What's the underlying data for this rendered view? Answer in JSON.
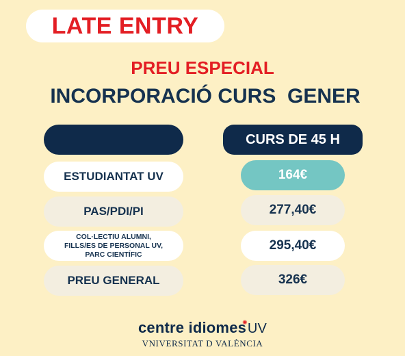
{
  "badge": {
    "text": "LATE ENTRY"
  },
  "headline": {
    "line1": "PREU ESPECIAL",
    "line2": "INCORPORACIÓ CURS  GENER"
  },
  "table": {
    "left_header": "",
    "right_header": "CURS DE 45 H",
    "rows": [
      {
        "label": "ESTUDIANTAT UV",
        "price": "164€"
      },
      {
        "label": "PAS/PDI/PI",
        "price": "277,40€"
      },
      {
        "label": "COL·LECTIU ALUMNI,\nFILLS/ES DE PERSONAL UV,\nPARC CIENTÍFIC",
        "price": "295,40€"
      },
      {
        "label": "PREU GENERAL",
        "price": "326€"
      }
    ]
  },
  "logo": {
    "brand": "centre idiomes",
    "brand_suffix": "UV",
    "university": "VNIVERSITAT D VALÈNCIA"
  },
  "colors": {
    "background": "#fdf0c5",
    "red": "#e31e24",
    "navy": "#0f2a4a",
    "teal": "#74c6c3"
  }
}
